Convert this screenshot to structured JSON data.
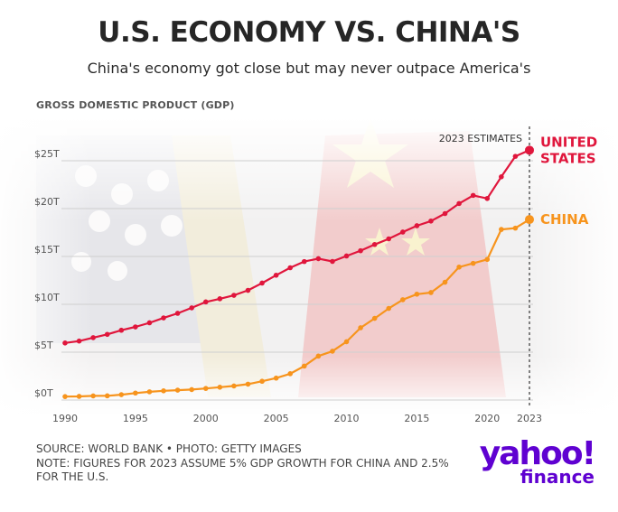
{
  "title": "U.S. ECONOMY VS. CHINA'S",
  "subtitle": "China's economy got close but may never outpace America's",
  "ylabel": "GROSS DOMESTIC PRODUCT (GDP)",
  "annotation": "2023 ESTIMATES",
  "footer": {
    "source": "SOURCE: WORLD BANK • PHOTO: GETTY IMAGES",
    "note": "NOTE: FIGURES FOR 2023 ASSUME 5% GDP GROWTH FOR CHINA AND 2.5% FOR THE U.S."
  },
  "logo": {
    "name": "yahoo!",
    "sub": "finance"
  },
  "colors": {
    "us": "#e0163c",
    "china": "#f7941d",
    "logo": "#5f01d1"
  },
  "chart_data": {
    "type": "line",
    "xlim": [
      1990,
      2023
    ],
    "ylim": [
      0,
      25
    ],
    "x_ticks": [
      1990,
      1995,
      2000,
      2005,
      2010,
      2015,
      2020,
      2023
    ],
    "y_ticks": [
      {
        "value": 0,
        "label": "$0T"
      },
      {
        "value": 5,
        "label": "$5T"
      },
      {
        "value": 10,
        "label": "$10T"
      },
      {
        "value": 15,
        "label": "$15T"
      },
      {
        "value": 20,
        "label": "$20T"
      },
      {
        "value": 25,
        "label": "$25T"
      }
    ],
    "x": [
      1990,
      1991,
      1992,
      1993,
      1994,
      1995,
      1996,
      1997,
      1998,
      1999,
      2000,
      2001,
      2002,
      2003,
      2004,
      2005,
      2006,
      2007,
      2008,
      2009,
      2010,
      2011,
      2012,
      2013,
      2014,
      2015,
      2016,
      2017,
      2018,
      2019,
      2020,
      2021,
      2022,
      2023
    ],
    "series": [
      {
        "name": "UNITED STATES",
        "values": [
          5.96,
          6.16,
          6.52,
          6.86,
          7.29,
          7.64,
          8.07,
          8.58,
          9.06,
          9.63,
          10.25,
          10.58,
          10.94,
          11.46,
          12.22,
          13.04,
          13.82,
          14.47,
          14.77,
          14.48,
          15.05,
          15.6,
          16.25,
          16.84,
          17.55,
          18.21,
          18.7,
          19.48,
          20.53,
          21.38,
          21.06,
          23.32,
          25.46,
          26.1
        ],
        "label_lines": [
          "UNITED",
          "STATES"
        ]
      },
      {
        "name": "CHINA",
        "values": [
          0.36,
          0.38,
          0.43,
          0.44,
          0.56,
          0.73,
          0.86,
          0.96,
          1.03,
          1.09,
          1.21,
          1.34,
          1.47,
          1.66,
          1.96,
          2.29,
          2.75,
          3.55,
          4.59,
          5.1,
          6.09,
          7.55,
          8.53,
          9.57,
          10.48,
          11.06,
          11.23,
          12.31,
          13.89,
          14.28,
          14.69,
          17.82,
          17.96,
          18.86
        ],
        "label_lines": [
          "CHINA"
        ]
      }
    ],
    "grid": true,
    "estimate_marker_x": 2023
  }
}
